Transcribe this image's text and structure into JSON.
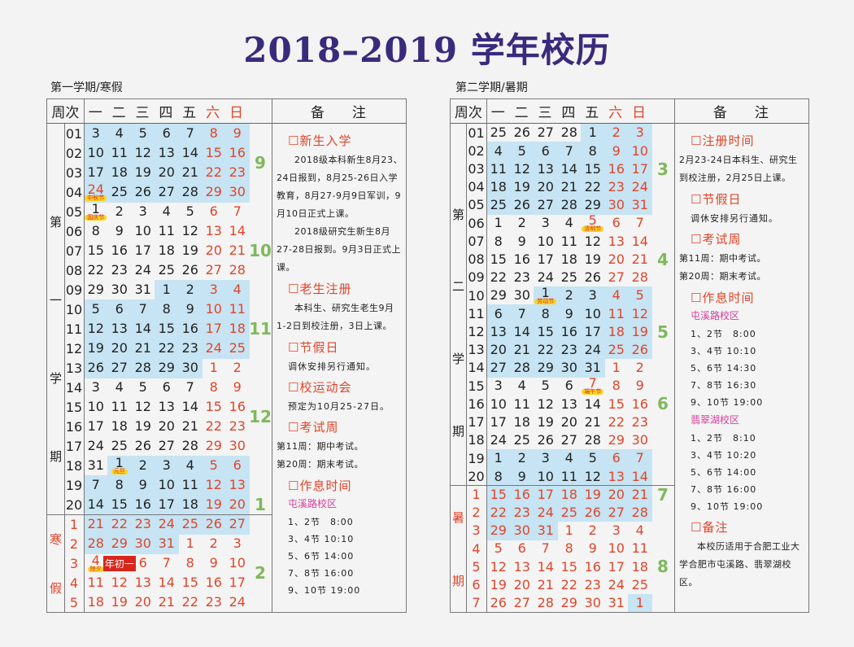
{
  "title": "2018–2019 学年校历",
  "header": {
    "week_col": "周次",
    "days": [
      "一",
      "二",
      "三",
      "四",
      "五",
      "六",
      "日"
    ],
    "notes_col": "备　　注"
  },
  "colors": {
    "title": "#3a2a7c",
    "weekend_red": "#e0452a",
    "month_blue": "#c6e4f3",
    "month_green": "#8fc46e",
    "campus_pink": "#d63c9a"
  },
  "semester1": {
    "label": "第一学期/寒假",
    "term_label": [
      "第",
      "一",
      "学",
      "期"
    ],
    "break_label": [
      "寒",
      "假"
    ],
    "weeks": [
      {
        "wk": "01",
        "days": [
          3,
          4,
          5,
          6,
          7,
          8,
          9
        ]
      },
      {
        "wk": "02",
        "days": [
          10,
          11,
          12,
          13,
          14,
          15,
          16
        ]
      },
      {
        "wk": "03",
        "days": [
          17,
          18,
          19,
          20,
          21,
          22,
          23
        ]
      },
      {
        "wk": "04",
        "days": [
          24,
          25,
          26,
          27,
          28,
          29,
          30
        ]
      },
      {
        "wk": "05",
        "days": [
          1,
          2,
          3,
          4,
          5,
          6,
          7
        ]
      },
      {
        "wk": "06",
        "days": [
          8,
          9,
          10,
          11,
          12,
          13,
          14
        ]
      },
      {
        "wk": "07",
        "days": [
          15,
          16,
          17,
          18,
          19,
          20,
          21
        ]
      },
      {
        "wk": "08",
        "days": [
          22,
          23,
          24,
          25,
          26,
          27,
          28
        ]
      },
      {
        "wk": "09",
        "days": [
          29,
          30,
          31,
          1,
          2,
          3,
          4
        ]
      },
      {
        "wk": "10",
        "days": [
          5,
          6,
          7,
          8,
          9,
          10,
          11
        ]
      },
      {
        "wk": "11",
        "days": [
          12,
          13,
          14,
          15,
          16,
          17,
          18
        ]
      },
      {
        "wk": "12",
        "days": [
          19,
          20,
          21,
          22,
          23,
          24,
          25
        ]
      },
      {
        "wk": "13",
        "days": [
          26,
          27,
          28,
          29,
          30,
          1,
          2
        ]
      },
      {
        "wk": "14",
        "days": [
          3,
          4,
          5,
          6,
          7,
          8,
          9
        ]
      },
      {
        "wk": "15",
        "days": [
          10,
          11,
          12,
          13,
          14,
          15,
          16
        ]
      },
      {
        "wk": "16",
        "days": [
          17,
          18,
          19,
          20,
          21,
          22,
          23
        ]
      },
      {
        "wk": "17",
        "days": [
          24,
          25,
          26,
          27,
          28,
          29,
          30
        ]
      },
      {
        "wk": "18",
        "days": [
          31,
          1,
          2,
          3,
          4,
          5,
          6
        ]
      },
      {
        "wk": "19",
        "days": [
          7,
          8,
          9,
          10,
          11,
          12,
          13
        ]
      },
      {
        "wk": "20",
        "days": [
          14,
          15,
          16,
          17,
          18,
          19,
          20
        ]
      },
      {
        "wk": "1",
        "days": [
          21,
          22,
          23,
          24,
          25,
          26,
          27
        ],
        "break": true
      },
      {
        "wk": "2",
        "days": [
          28,
          29,
          30,
          31,
          1,
          2,
          3
        ],
        "break": true
      },
      {
        "wk": "3",
        "days": [
          4,
          5,
          6,
          7,
          8,
          9,
          10
        ],
        "break": true
      },
      {
        "wk": "4",
        "days": [
          11,
          12,
          13,
          14,
          15,
          16,
          17
        ],
        "break": true
      },
      {
        "wk": "5",
        "days": [
          18,
          19,
          20,
          21,
          22,
          23,
          24
        ],
        "break": true
      }
    ],
    "months": [
      "9",
      "10",
      "11",
      "12",
      "1",
      "2"
    ],
    "marks": [
      {
        "date": "9-24",
        "label": "中秋节",
        "red": true
      },
      {
        "date": "10-1",
        "label": "国庆节"
      },
      {
        "date": "1-1",
        "label": "元旦"
      },
      {
        "date": "2-4",
        "label": "除夕",
        "red": true
      },
      {
        "date": "2-5",
        "box": "年初一"
      }
    ],
    "notes": [
      {
        "t": "h",
        "v": "☐新生入学"
      },
      {
        "t": "p",
        "v": "2018级本科新生8月23、24日报到，8月25-26日入学教育，8月27-9月9日军训，9月10日正式上课。"
      },
      {
        "t": "p",
        "v": "2018级研究生新生8月27-28日报到。9月3日正式上课。"
      },
      {
        "t": "h",
        "v": "☐老生注册"
      },
      {
        "t": "p",
        "v": "本科生、研究生老生9月1-2日到校注册，3日上课。"
      },
      {
        "t": "h",
        "v": "☐节假日"
      },
      {
        "t": "s",
        "v": "调休安排另行通知。"
      },
      {
        "t": "h",
        "v": "☐校运动会"
      },
      {
        "t": "s",
        "v": "预定为10月25-27日。"
      },
      {
        "t": "h",
        "v": "☐考试周"
      },
      {
        "t": "l",
        "v": "第11周：期中考试。"
      },
      {
        "t": "l",
        "v": "第20周：期末考试。"
      },
      {
        "t": "h",
        "v": "☐作息时间"
      },
      {
        "t": "c",
        "v": "屯溪路校区"
      },
      {
        "t": "s",
        "v": "1、2节　8:00"
      },
      {
        "t": "s",
        "v": "3、4节 10:10"
      },
      {
        "t": "s",
        "v": "5、6节 14:00"
      },
      {
        "t": "s",
        "v": "7、8节 16:00"
      },
      {
        "t": "s",
        "v": "9、10节 19:00"
      }
    ]
  },
  "semester2": {
    "label": "第二学期/暑期",
    "term_label": [
      "第",
      "二",
      "学",
      "期"
    ],
    "break_label": [
      "暑",
      "期"
    ],
    "weeks": [
      {
        "wk": "01",
        "days": [
          25,
          26,
          27,
          28,
          1,
          2,
          3
        ]
      },
      {
        "wk": "02",
        "days": [
          4,
          5,
          6,
          7,
          8,
          9,
          10
        ]
      },
      {
        "wk": "03",
        "days": [
          11,
          12,
          13,
          14,
          15,
          16,
          17
        ]
      },
      {
        "wk": "04",
        "days": [
          18,
          19,
          20,
          21,
          22,
          23,
          24
        ]
      },
      {
        "wk": "05",
        "days": [
          25,
          26,
          27,
          28,
          29,
          30,
          31
        ]
      },
      {
        "wk": "06",
        "days": [
          1,
          2,
          3,
          4,
          5,
          6,
          7
        ]
      },
      {
        "wk": "07",
        "days": [
          8,
          9,
          10,
          11,
          12,
          13,
          14
        ]
      },
      {
        "wk": "08",
        "days": [
          15,
          16,
          17,
          18,
          19,
          20,
          21
        ]
      },
      {
        "wk": "09",
        "days": [
          22,
          23,
          24,
          25,
          26,
          27,
          28
        ]
      },
      {
        "wk": "10",
        "days": [
          29,
          30,
          1,
          2,
          3,
          4,
          5
        ]
      },
      {
        "wk": "11",
        "days": [
          6,
          7,
          8,
          9,
          10,
          11,
          12
        ]
      },
      {
        "wk": "12",
        "days": [
          13,
          14,
          15,
          16,
          17,
          18,
          19
        ]
      },
      {
        "wk": "13",
        "days": [
          20,
          21,
          22,
          23,
          24,
          25,
          26
        ]
      },
      {
        "wk": "14",
        "days": [
          27,
          28,
          29,
          30,
          31,
          1,
          2
        ]
      },
      {
        "wk": "15",
        "days": [
          3,
          4,
          5,
          6,
          7,
          8,
          9
        ]
      },
      {
        "wk": "16",
        "days": [
          10,
          11,
          12,
          13,
          14,
          15,
          16
        ]
      },
      {
        "wk": "17",
        "days": [
          17,
          18,
          19,
          20,
          21,
          22,
          23
        ]
      },
      {
        "wk": "18",
        "days": [
          24,
          25,
          26,
          27,
          28,
          29,
          30
        ]
      },
      {
        "wk": "19",
        "days": [
          1,
          2,
          3,
          4,
          5,
          6,
          7
        ]
      },
      {
        "wk": "20",
        "days": [
          8,
          9,
          10,
          11,
          12,
          13,
          14
        ]
      },
      {
        "wk": "1",
        "days": [
          15,
          16,
          17,
          18,
          19,
          20,
          21
        ],
        "break": true
      },
      {
        "wk": "2",
        "days": [
          22,
          23,
          24,
          25,
          26,
          27,
          28
        ],
        "break": true
      },
      {
        "wk": "3",
        "days": [
          29,
          30,
          31,
          1,
          2,
          3,
          4
        ],
        "break": true
      },
      {
        "wk": "4",
        "days": [
          5,
          6,
          7,
          8,
          9,
          10,
          11
        ],
        "break": true
      },
      {
        "wk": "5",
        "days": [
          12,
          13,
          14,
          15,
          16,
          17,
          18
        ],
        "break": true
      },
      {
        "wk": "6",
        "days": [
          19,
          20,
          21,
          22,
          23,
          24,
          25
        ],
        "break": true
      },
      {
        "wk": "7",
        "days": [
          26,
          27,
          28,
          29,
          30,
          31,
          1
        ],
        "break": true
      }
    ],
    "months": [
      "3",
      "4",
      "5",
      "6",
      "7",
      "8"
    ],
    "marks": [
      {
        "date": "4-5",
        "label": "清明节",
        "red": true
      },
      {
        "date": "5-1",
        "label": "劳动节"
      },
      {
        "date": "6-7",
        "label": "端午节",
        "red": true
      }
    ],
    "notes": [
      {
        "t": "h",
        "v": "☐注册时间"
      },
      {
        "t": "l",
        "v": "2月23-24日本科生、研究生到校注册，2月25日上课。"
      },
      {
        "t": "h",
        "v": "☐节假日"
      },
      {
        "t": "s",
        "v": "调休安排另行通知。"
      },
      {
        "t": "h",
        "v": "☐考试周"
      },
      {
        "t": "l",
        "v": "第11周：期中考试。"
      },
      {
        "t": "l",
        "v": "第20周：期末考试。"
      },
      {
        "t": "h",
        "v": "☐作息时间"
      },
      {
        "t": "c",
        "v": "屯溪路校区"
      },
      {
        "t": "s",
        "v": "1、2节　8:00"
      },
      {
        "t": "s",
        "v": "3、4节 10:10"
      },
      {
        "t": "s",
        "v": "5、6节 14:30"
      },
      {
        "t": "s",
        "v": "7、8节 16:30"
      },
      {
        "t": "s",
        "v": "9、10节 19:00"
      },
      {
        "t": "c",
        "v": "翡翠湖校区"
      },
      {
        "t": "s",
        "v": "1、2节　8:10"
      },
      {
        "t": "s",
        "v": "3、4节 10:20"
      },
      {
        "t": "s",
        "v": "5、6节 14:00"
      },
      {
        "t": "s",
        "v": "7、8节 16:00"
      },
      {
        "t": "s",
        "v": "9、10节 19:00"
      },
      {
        "t": "h",
        "v": "☐备注"
      },
      {
        "t": "p",
        "v": "本校历适用于合肥工业大学合肥市屯溪路、翡翠湖校区。"
      }
    ]
  }
}
